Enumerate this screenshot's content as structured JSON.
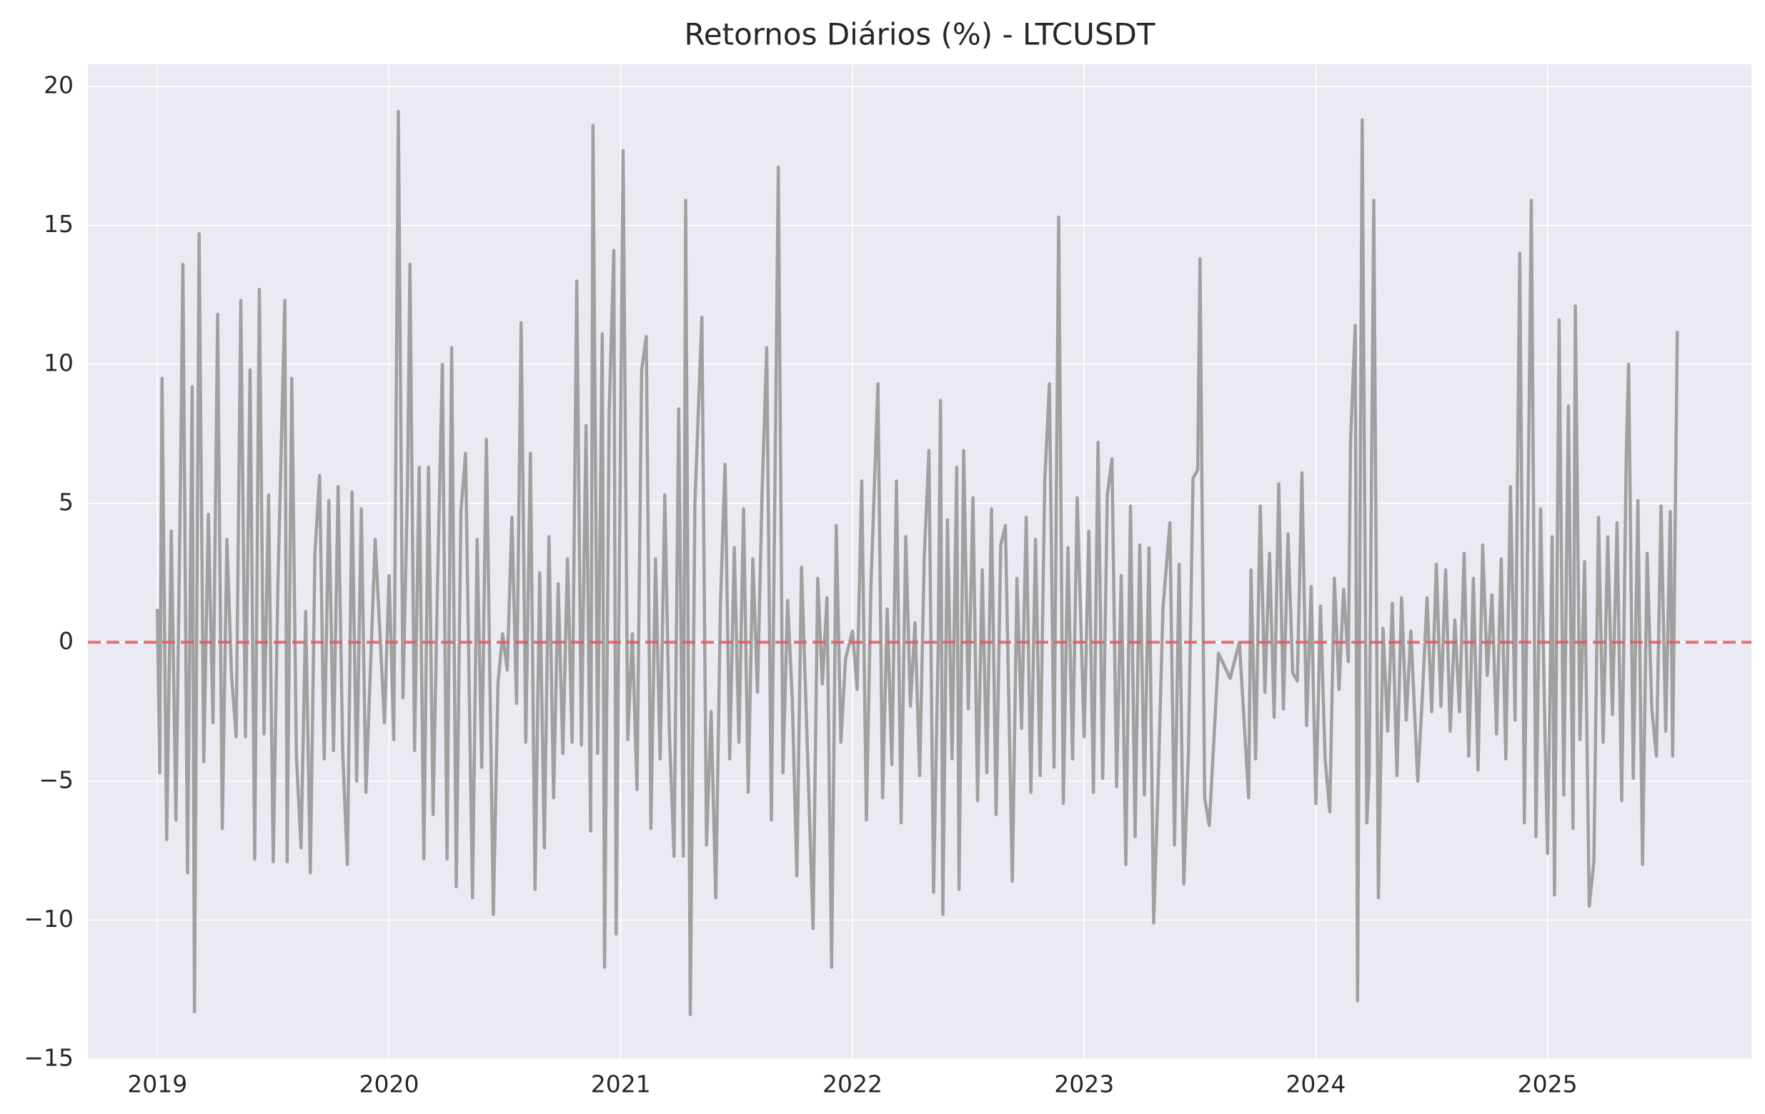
{
  "chart_data": {
    "type": "line",
    "title": "Retornos Diários (%) - LTCUSDT",
    "color": "#a0a0a0",
    "xlim": [
      2018.7,
      2025.88
    ],
    "xticks": [
      2019,
      2020,
      2021,
      2022,
      2023,
      2024,
      2025
    ],
    "ylim": [
      -15,
      20.8
    ],
    "yticks": [
      {
        "value": -15,
        "label": "−15"
      },
      {
        "value": -10,
        "label": "−10"
      },
      {
        "value": -5,
        "label": "−5"
      },
      0,
      5,
      10,
      15,
      20
    ],
    "grid": true,
    "hline": {
      "value": 0,
      "color": "#e8575a"
    },
    "x": [
      2019.0,
      2019.01,
      2019.02,
      2019.04,
      2019.06,
      2019.08,
      2019.1,
      2019.11,
      2019.13,
      2019.15,
      2019.16,
      2019.18,
      2019.2,
      2019.22,
      2019.24,
      2019.26,
      2019.28,
      2019.3,
      2019.32,
      2019.34,
      2019.36,
      2019.38,
      2019.4,
      2019.42,
      2019.44,
      2019.46,
      2019.48,
      2019.5,
      2019.52,
      2019.55,
      2019.56,
      2019.58,
      2019.6,
      2019.62,
      2019.64,
      2019.66,
      2019.68,
      2019.7,
      2019.72,
      2019.74,
      2019.76,
      2019.78,
      2019.8,
      2019.82,
      2019.84,
      2019.86,
      2019.88,
      2019.9,
      2019.94,
      2019.98,
      2020.0,
      2020.02,
      2020.04,
      2020.06,
      2020.08,
      2020.09,
      2020.11,
      2020.13,
      2020.15,
      2020.17,
      2020.19,
      2020.21,
      2020.23,
      2020.25,
      2020.27,
      2020.29,
      2020.31,
      2020.33,
      2020.36,
      2020.38,
      2020.4,
      2020.42,
      2020.45,
      2020.47,
      2020.49,
      2020.51,
      2020.53,
      2020.55,
      2020.57,
      2020.59,
      2020.61,
      2020.63,
      2020.65,
      2020.67,
      2020.69,
      2020.71,
      2020.73,
      2020.75,
      2020.77,
      2020.79,
      2020.81,
      2020.83,
      2020.85,
      2020.87,
      2020.88,
      2020.9,
      2020.92,
      2020.93,
      2020.95,
      2020.97,
      2020.98,
      2021.01,
      2021.03,
      2021.05,
      2021.07,
      2021.09,
      2021.11,
      2021.13,
      2021.15,
      2021.17,
      2021.19,
      2021.21,
      2021.23,
      2021.25,
      2021.27,
      2021.28,
      2021.3,
      2021.32,
      2021.35,
      2021.37,
      2021.39,
      2021.41,
      2021.43,
      2021.45,
      2021.47,
      2021.49,
      2021.51,
      2021.53,
      2021.55,
      2021.57,
      2021.59,
      2021.61,
      2021.63,
      2021.65,
      2021.68,
      2021.7,
      2021.72,
      2021.74,
      2021.76,
      2021.78,
      2021.8,
      2021.83,
      2021.85,
      2021.87,
      2021.89,
      2021.91,
      2021.93,
      2021.95,
      2021.97,
      2022.0,
      2022.02,
      2022.04,
      2022.06,
      2022.08,
      2022.11,
      2022.13,
      2022.15,
      2022.17,
      2022.19,
      2022.21,
      2022.23,
      2022.25,
      2022.27,
      2022.29,
      2022.31,
      2022.33,
      2022.35,
      2022.37,
      2022.38,
      2022.39,
      2022.41,
      2022.43,
      2022.45,
      2022.46,
      2022.48,
      2022.5,
      2022.52,
      2022.54,
      2022.56,
      2022.58,
      2022.6,
      2022.62,
      2022.64,
      2022.66,
      2022.69,
      2022.71,
      2022.73,
      2022.75,
      2022.77,
      2022.79,
      2022.81,
      2022.83,
      2022.85,
      2022.87,
      2022.89,
      2022.91,
      2022.93,
      2022.95,
      2022.97,
      2023.0,
      2023.02,
      2023.04,
      2023.06,
      2023.08,
      2023.1,
      2023.12,
      2023.14,
      2023.16,
      2023.18,
      2023.2,
      2023.22,
      2023.24,
      2023.26,
      2023.28,
      2023.3,
      2023.32,
      2023.34,
      2023.37,
      2023.39,
      2023.41,
      2023.43,
      2023.45,
      2023.47,
      2023.49,
      2023.5,
      2023.52,
      2023.54,
      2023.58,
      2023.63,
      2023.67,
      2023.71,
      2023.72,
      2023.74,
      2023.76,
      2023.78,
      2023.8,
      2023.82,
      2023.84,
      2023.86,
      2023.88,
      2023.9,
      2023.92,
      2023.94,
      2023.96,
      2023.98,
      2024.0,
      2024.02,
      2024.04,
      2024.06,
      2024.08,
      2024.1,
      2024.12,
      2024.14,
      2024.15,
      2024.17,
      2024.18,
      2024.2,
      2024.22,
      2024.23,
      2024.25,
      2024.27,
      2024.29,
      2024.31,
      2024.33,
      2024.35,
      2024.37,
      2024.39,
      2024.41,
      2024.44,
      2024.46,
      2024.48,
      2024.5,
      2024.52,
      2024.54,
      2024.56,
      2024.58,
      2024.6,
      2024.62,
      2024.64,
      2024.66,
      2024.68,
      2024.7,
      2024.72,
      2024.74,
      2024.76,
      2024.78,
      2024.8,
      2024.82,
      2024.84,
      2024.86,
      2024.88,
      2024.9,
      2024.92,
      2024.93,
      2024.95,
      2024.97,
      2024.99,
      2025.0,
      2025.02,
      2025.03,
      2025.05,
      2025.07,
      2025.09,
      2025.11,
      2025.12,
      2025.14,
      2025.16,
      2025.18,
      2025.2,
      2025.22,
      2025.24,
      2025.26,
      2025.28,
      2025.3,
      2025.32,
      2025.34,
      2025.35,
      2025.37,
      2025.39,
      2025.41,
      2025.43,
      2025.45,
      2025.47,
      2025.49,
      2025.51,
      2025.53,
      2025.54,
      2025.56
    ],
    "values": [
      1.2,
      -4.7,
      9.5,
      -7.1,
      4.0,
      -6.4,
      6.0,
      13.6,
      -8.3,
      9.2,
      -13.3,
      14.7,
      -4.3,
      4.6,
      -2.9,
      11.8,
      -6.7,
      3.7,
      -1.2,
      -3.4,
      12.3,
      -3.4,
      9.8,
      -7.8,
      12.7,
      -3.3,
      5.3,
      -7.9,
      2.0,
      12.3,
      -7.9,
      9.5,
      -4.1,
      -7.4,
      1.1,
      -8.3,
      3.2,
      6.0,
      -4.2,
      5.1,
      -3.9,
      5.6,
      -4.0,
      -8.0,
      5.4,
      -5.0,
      4.8,
      -5.4,
      3.7,
      -2.9,
      2.4,
      -3.5,
      19.1,
      -2.0,
      5.8,
      13.6,
      -3.9,
      6.3,
      -7.8,
      6.3,
      -6.2,
      2.5,
      10.0,
      -7.8,
      10.6,
      -8.8,
      4.7,
      6.8,
      -9.2,
      3.7,
      -4.5,
      7.3,
      -9.8,
      -1.5,
      0.3,
      -1.0,
      4.5,
      -2.2,
      11.5,
      -3.6,
      6.8,
      -8.9,
      2.5,
      -7.4,
      3.8,
      -5.6,
      2.1,
      -4.0,
      3.0,
      -3.6,
      13.0,
      -3.7,
      7.8,
      -6.8,
      18.6,
      -4.0,
      11.1,
      -11.7,
      8.3,
      14.1,
      -10.5,
      17.7,
      -3.5,
      0.3,
      -5.3,
      9.8,
      11.0,
      -6.7,
      3.0,
      -4.2,
      5.3,
      -3.3,
      -7.7,
      8.4,
      -7.7,
      15.9,
      -13.4,
      5.0,
      11.7,
      -7.3,
      -2.5,
      -9.2,
      1.3,
      6.4,
      -4.2,
      3.4,
      -3.6,
      4.8,
      -5.4,
      3.0,
      -1.8,
      5.4,
      10.6,
      -6.4,
      17.1,
      -4.7,
      1.5,
      -2.0,
      -8.4,
      2.7,
      -2.4,
      -10.3,
      2.3,
      -1.5,
      1.6,
      -11.7,
      4.2,
      -3.6,
      -0.6,
      0.4,
      -1.7,
      5.8,
      -6.4,
      2.1,
      9.3,
      -5.6,
      1.2,
      -4.4,
      5.8,
      -6.5,
      3.8,
      -2.3,
      0.7,
      -4.8,
      3.1,
      6.9,
      -9.0,
      -0.2,
      8.7,
      -9.8,
      4.4,
      -4.2,
      6.3,
      -8.9,
      6.9,
      -2.4,
      5.2,
      -5.7,
      2.6,
      -4.7,
      4.8,
      -6.2,
      3.5,
      4.2,
      -8.6,
      2.3,
      -3.1,
      4.5,
      -5.4,
      3.7,
      -4.8,
      5.8,
      9.3,
      -4.5,
      15.3,
      -5.8,
      3.4,
      -4.2,
      5.2,
      -3.4,
      4.0,
      -5.4,
      7.2,
      -4.9,
      5.3,
      6.6,
      -5.2,
      2.4,
      -8.0,
      4.9,
      -7.0,
      3.5,
      -5.5,
      3.4,
      -10.1,
      -4.9,
      1.2,
      4.3,
      -7.3,
      2.8,
      -8.7,
      -4.0,
      5.9,
      6.2,
      13.8,
      -5.6,
      -6.6,
      -0.4,
      -1.3,
      0.0,
      -5.6,
      2.6,
      -4.2,
      4.9,
      -1.8,
      3.2,
      -2.7,
      5.7,
      -2.4,
      3.9,
      -1.1,
      -1.4,
      6.1,
      -3.0,
      2.0,
      -5.8,
      1.3,
      -4.2,
      -6.1,
      2.3,
      -1.7,
      1.9,
      -0.7,
      7.3,
      11.4,
      -12.9,
      18.8,
      -6.5,
      -4.7,
      15.9,
      -9.2,
      0.5,
      -3.2,
      1.4,
      -4.8,
      1.6,
      -2.8,
      0.4,
      -5.0,
      -1.9,
      1.6,
      -2.5,
      2.8,
      -2.3,
      2.6,
      -3.2,
      0.8,
      -2.5,
      3.2,
      -4.1,
      2.3,
      -4.6,
      3.5,
      -1.2,
      1.7,
      -3.3,
      3.0,
      -4.2,
      5.6,
      -2.8,
      14.0,
      -6.5,
      7.9,
      15.9,
      -7.0,
      4.8,
      -3.7,
      -7.6,
      3.8,
      -9.1,
      11.6,
      -5.5,
      8.5,
      -6.7,
      12.1,
      -3.5,
      2.9,
      -9.5,
      -7.9,
      4.5,
      -3.6,
      3.8,
      -2.6,
      4.3,
      -5.7,
      6.8,
      10.0,
      -4.9,
      5.1,
      -8.0,
      3.2,
      -2.4,
      -4.1,
      4.9,
      -3.2,
      4.7,
      -4.1,
      11.2
    ]
  }
}
